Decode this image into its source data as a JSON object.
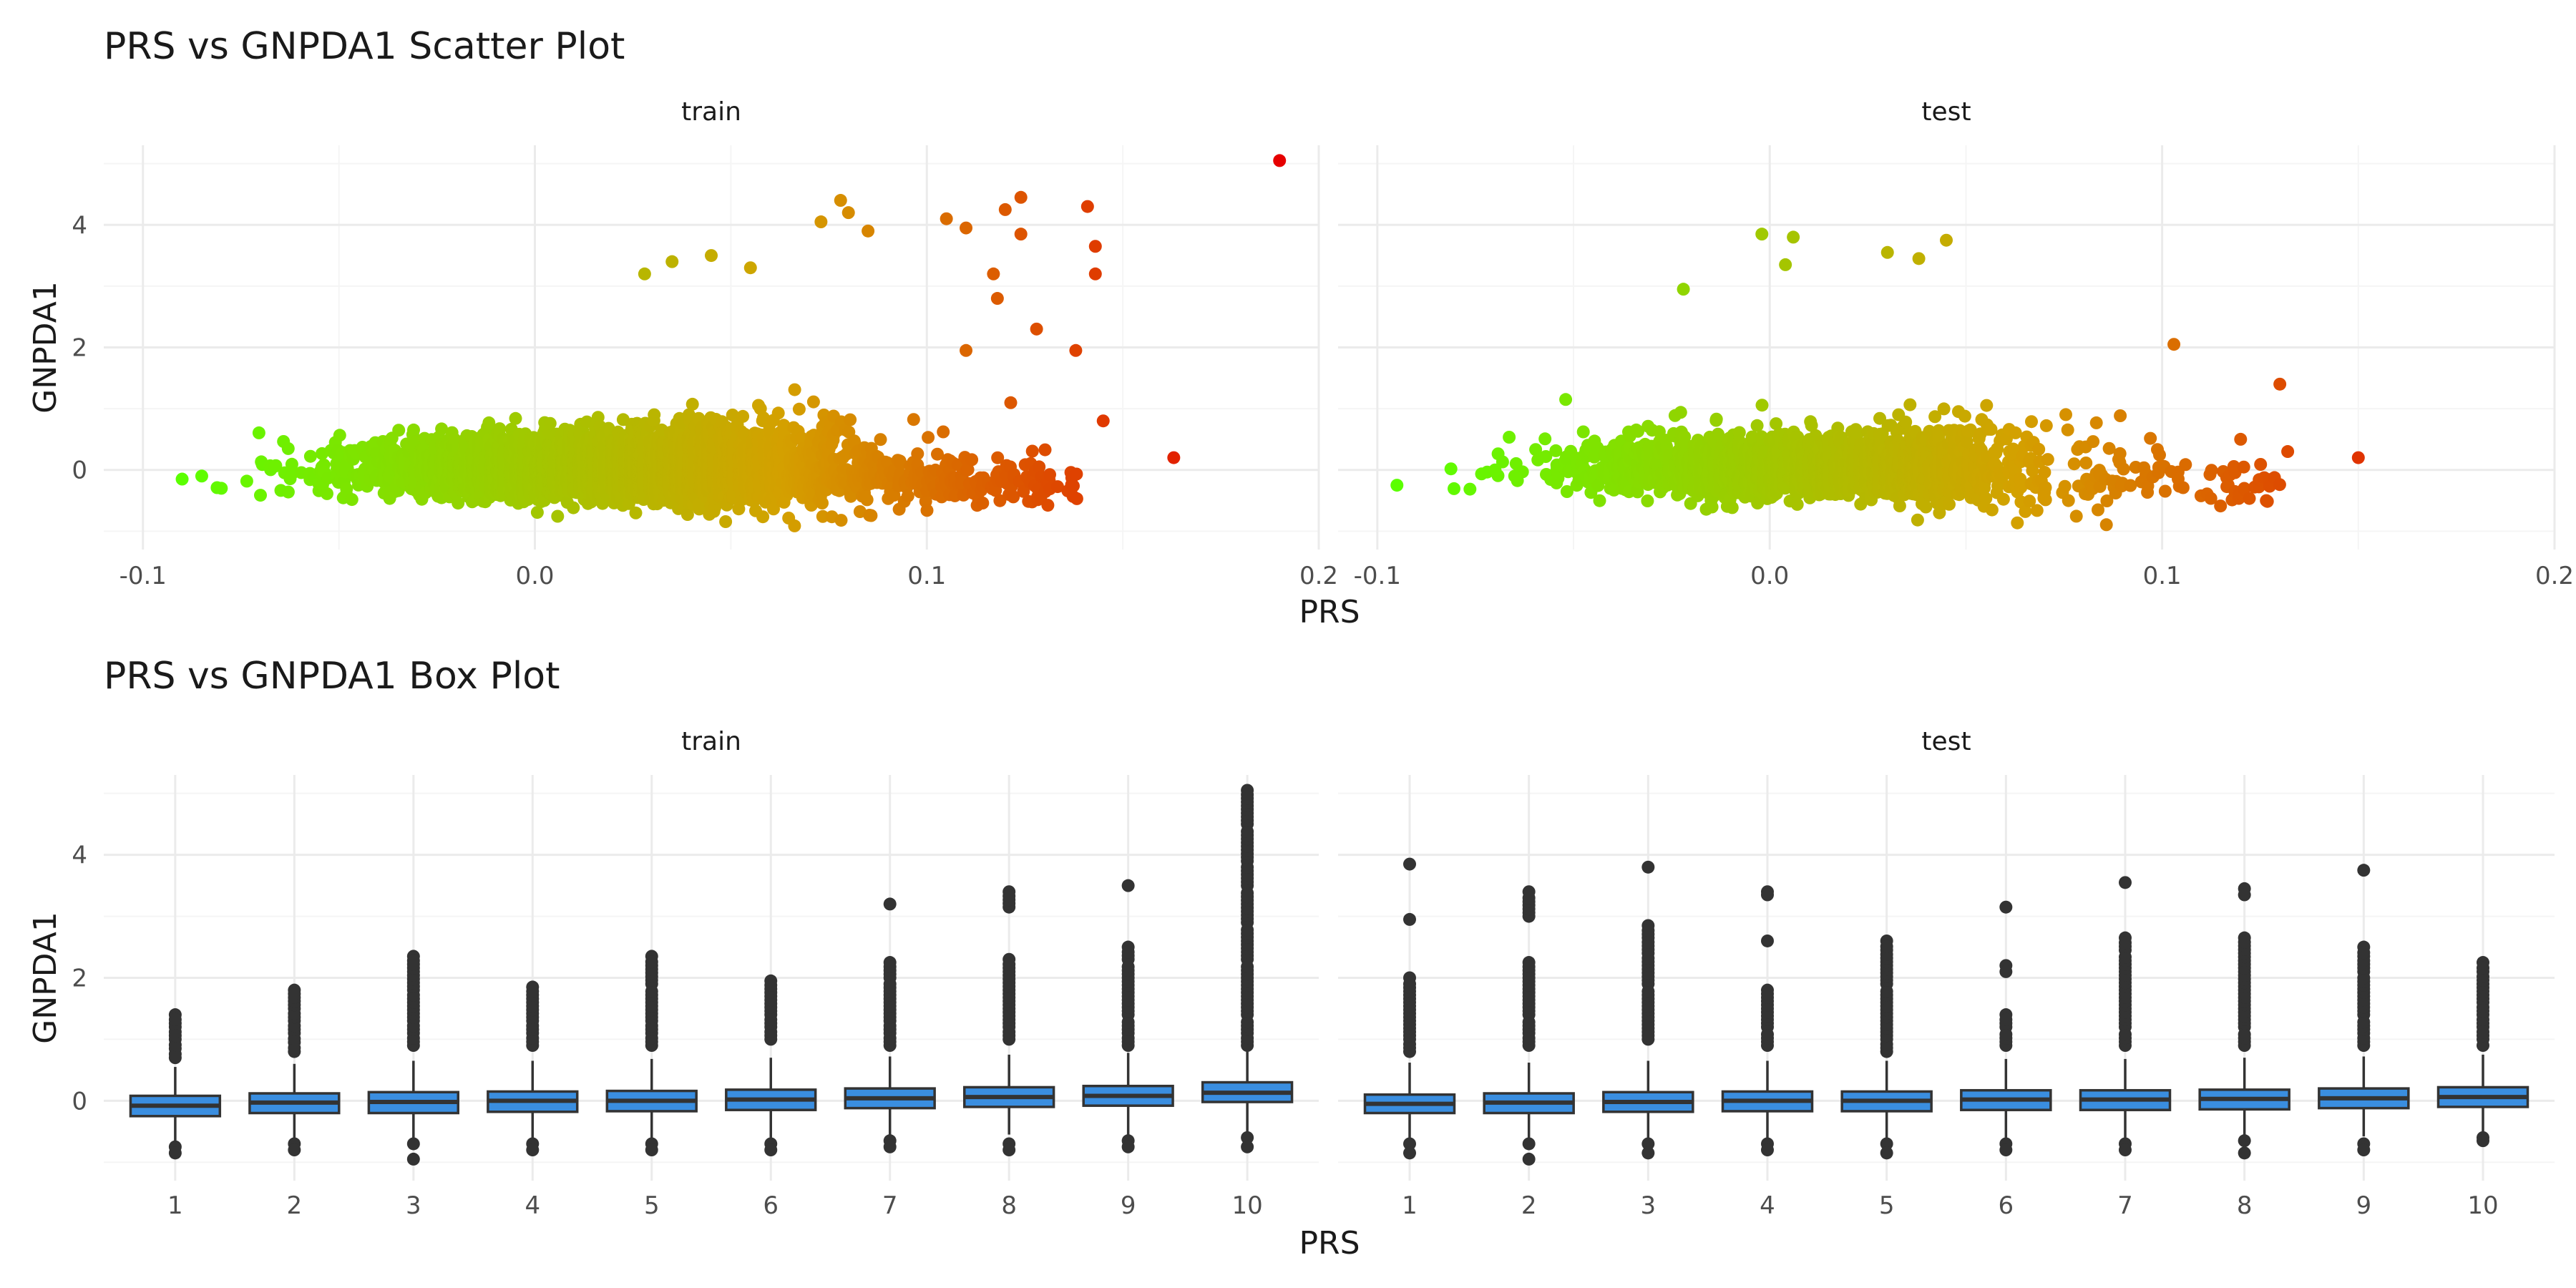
{
  "colors": {
    "grid_major": "#ebebeb",
    "grid_minor": "#f5f5f5",
    "text_dark": "#1a1a1a",
    "text_tick": "#4d4d4d",
    "box_fill": "#3a8ee0",
    "box_line": "#333333",
    "outlier": "#333333",
    "gradient_low": "#5bff00",
    "gradient_mid": "#d4a000",
    "gradient_high": "#e60000"
  },
  "chart_data": [
    {
      "type": "scatter",
      "title": "PRS vs GNPDA1 Scatter Plot",
      "xlabel": "PRS",
      "ylabel": "GNPDA1",
      "xlim": [
        -0.11,
        0.2
      ],
      "ylim": [
        -1.3,
        5.3
      ],
      "x_ticks": [
        -0.1,
        0.0,
        0.1,
        0.2
      ],
      "x_tick_labels": [
        "-0.1",
        "0.0",
        "0.1",
        "0.2"
      ],
      "y_ticks": [
        0,
        2,
        4
      ],
      "y_tick_labels": [
        "0",
        "2",
        "4"
      ],
      "grid": true,
      "color_encoding": "point color follows PRS, green (low) to orange/red (high)",
      "facets": [
        {
          "label": "train",
          "x_range": [
            -0.09,
            0.19
          ],
          "cloud_center": [
            0.02,
            0.0
          ],
          "highlight_points": [
            {
              "x": 0.19,
              "y": 5.05
            },
            {
              "x": 0.163,
              "y": 0.2
            },
            {
              "x": 0.141,
              "y": 4.3
            },
            {
              "x": 0.143,
              "y": 3.65
            },
            {
              "x": 0.143,
              "y": 3.2
            },
            {
              "x": 0.124,
              "y": 4.45
            },
            {
              "x": 0.124,
              "y": 3.85
            },
            {
              "x": 0.12,
              "y": 4.25
            },
            {
              "x": 0.118,
              "y": 2.8
            },
            {
              "x": 0.11,
              "y": 3.95
            },
            {
              "x": 0.117,
              "y": 3.2
            },
            {
              "x": 0.105,
              "y": 4.1
            },
            {
              "x": 0.08,
              "y": 4.2
            },
            {
              "x": 0.078,
              "y": 4.4
            },
            {
              "x": 0.085,
              "y": 3.9
            },
            {
              "x": 0.073,
              "y": 4.05
            },
            {
              "x": 0.055,
              "y": 3.3
            },
            {
              "x": 0.045,
              "y": 3.5
            },
            {
              "x": 0.035,
              "y": 3.4
            },
            {
              "x": 0.028,
              "y": 3.2
            },
            {
              "x": 0.128,
              "y": 2.3
            },
            {
              "x": 0.138,
              "y": 1.95
            },
            {
              "x": 0.11,
              "y": 1.95
            },
            {
              "x": 0.145,
              "y": 0.8
            },
            {
              "x": -0.085,
              "y": -0.1
            },
            {
              "x": -0.08,
              "y": -0.3
            },
            {
              "x": -0.09,
              "y": -0.15
            }
          ]
        },
        {
          "label": "test",
          "x_range": [
            -0.095,
            0.15
          ],
          "cloud_center": [
            0.01,
            0.0
          ],
          "highlight_points": [
            {
              "x": -0.095,
              "y": -0.25
            },
            {
              "x": 0.15,
              "y": 0.2
            },
            {
              "x": 0.13,
              "y": 1.4
            },
            {
              "x": 0.103,
              "y": 2.05
            },
            {
              "x": -0.002,
              "y": 3.85
            },
            {
              "x": 0.006,
              "y": 3.8
            },
            {
              "x": 0.03,
              "y": 3.55
            },
            {
              "x": 0.045,
              "y": 3.75
            },
            {
              "x": 0.038,
              "y": 3.45
            },
            {
              "x": 0.004,
              "y": 3.35
            },
            {
              "x": -0.022,
              "y": 2.95
            },
            {
              "x": 0.12,
              "y": 0.5
            },
            {
              "x": 0.132,
              "y": 0.3
            },
            {
              "x": -0.07,
              "y": 0.0
            },
            {
              "x": -0.065,
              "y": -0.1
            },
            {
              "x": -0.052,
              "y": 1.15
            }
          ]
        }
      ]
    },
    {
      "type": "box",
      "title": "PRS vs GNPDA1 Box Plot",
      "xlabel": "PRS",
      "ylabel": "GNPDA1",
      "ylim": [
        -1.3,
        5.3
      ],
      "y_ticks": [
        0,
        2,
        4
      ],
      "y_tick_labels": [
        "0",
        "2",
        "4"
      ],
      "categories": [
        "1",
        "2",
        "3",
        "4",
        "5",
        "6",
        "7",
        "8",
        "9",
        "10"
      ],
      "grid": true,
      "facets": [
        {
          "label": "train",
          "boxes": [
            {
              "q1": -0.25,
              "median": -0.08,
              "q3": 0.08,
              "lower": -0.65,
              "upper": 0.55,
              "outliers": [
                1.4,
                1.2,
                1.0,
                0.85,
                0.7,
                -0.75,
                -0.85
              ]
            },
            {
              "q1": -0.2,
              "median": -0.03,
              "q3": 0.12,
              "lower": -0.62,
              "upper": 0.6,
              "outliers": [
                1.8,
                1.5,
                1.3,
                1.1,
                0.95,
                0.8,
                -0.7,
                -0.8
              ]
            },
            {
              "q1": -0.2,
              "median": -0.02,
              "q3": 0.14,
              "lower": -0.65,
              "upper": 0.65,
              "outliers": [
                2.35,
                2.1,
                1.8,
                1.3,
                1.1,
                0.9,
                -0.7,
                -0.95
              ]
            },
            {
              "q1": -0.18,
              "median": 0.0,
              "q3": 0.15,
              "lower": -0.62,
              "upper": 0.65,
              "outliers": [
                1.85,
                1.6,
                1.3,
                1.1,
                0.9,
                -0.7,
                -0.8
              ]
            },
            {
              "q1": -0.17,
              "median": 0.0,
              "q3": 0.16,
              "lower": -0.62,
              "upper": 0.68,
              "outliers": [
                2.35,
                2.2,
                1.9,
                1.6,
                1.3,
                1.1,
                0.9,
                -0.7,
                -0.8
              ]
            },
            {
              "q1": -0.15,
              "median": 0.02,
              "q3": 0.18,
              "lower": -0.6,
              "upper": 0.7,
              "outliers": [
                1.95,
                1.7,
                1.4,
                1.2,
                1.0,
                -0.7,
                -0.8
              ]
            },
            {
              "q1": -0.12,
              "median": 0.04,
              "q3": 0.2,
              "lower": -0.58,
              "upper": 0.72,
              "outliers": [
                3.2,
                2.25,
                2.0,
                1.6,
                1.3,
                1.1,
                0.9,
                -0.65,
                -0.75
              ]
            },
            {
              "q1": -0.1,
              "median": 0.06,
              "q3": 0.22,
              "lower": -0.55,
              "upper": 0.75,
              "outliers": [
                3.4,
                3.15,
                2.3,
                2.1,
                1.8,
                1.5,
                1.2,
                1.0,
                -0.7,
                -0.8
              ]
            },
            {
              "q1": -0.08,
              "median": 0.08,
              "q3": 0.24,
              "lower": -0.55,
              "upper": 0.78,
              "outliers": [
                3.5,
                2.5,
                2.3,
                2.0,
                1.7,
                1.4,
                1.1,
                0.9,
                -0.65,
                -0.75
              ]
            },
            {
              "q1": -0.02,
              "median": 0.13,
              "q3": 0.3,
              "lower": -0.5,
              "upper": 0.8,
              "outliers": [
                5.05,
                4.5,
                4.2,
                3.9,
                3.5,
                3.2,
                2.9,
                2.6,
                2.3,
                2.0,
                1.7,
                1.4,
                1.1,
                0.9,
                -0.6,
                -0.75
              ]
            }
          ]
        },
        {
          "label": "test",
          "boxes": [
            {
              "q1": -0.2,
              "median": -0.05,
              "q3": 0.1,
              "lower": -0.62,
              "upper": 0.62,
              "outliers": [
                3.85,
                2.95,
                2.0,
                1.6,
                1.3,
                1.0,
                0.8,
                -0.7,
                -0.85
              ]
            },
            {
              "q1": -0.2,
              "median": -0.03,
              "q3": 0.12,
              "lower": -0.62,
              "upper": 0.62,
              "outliers": [
                3.4,
                3.0,
                2.25,
                2.0,
                1.7,
                1.4,
                1.1,
                0.9,
                -0.7,
                -0.95
              ]
            },
            {
              "q1": -0.18,
              "median": -0.02,
              "q3": 0.14,
              "lower": -0.62,
              "upper": 0.65,
              "outliers": [
                3.8,
                2.85,
                2.65,
                2.4,
                1.9,
                1.6,
                1.3,
                1.0,
                -0.7,
                -0.85
              ]
            },
            {
              "q1": -0.17,
              "median": 0.0,
              "q3": 0.15,
              "lower": -0.62,
              "upper": 0.65,
              "outliers": [
                3.4,
                3.35,
                2.6,
                1.8,
                1.5,
                1.2,
                0.9,
                -0.7,
                -0.8
              ]
            },
            {
              "q1": -0.17,
              "median": 0.0,
              "q3": 0.15,
              "lower": -0.62,
              "upper": 0.65,
              "outliers": [
                2.6,
                2.45,
                1.9,
                1.6,
                1.3,
                1.0,
                0.8,
                -0.7,
                -0.85
              ]
            },
            {
              "q1": -0.15,
              "median": 0.02,
              "q3": 0.17,
              "lower": -0.6,
              "upper": 0.68,
              "outliers": [
                3.15,
                2.2,
                2.1,
                1.4,
                1.2,
                0.9,
                -0.7,
                -0.8
              ]
            },
            {
              "q1": -0.15,
              "median": 0.02,
              "q3": 0.17,
              "lower": -0.6,
              "upper": 0.68,
              "outliers": [
                3.55,
                2.65,
                2.45,
                2.1,
                1.8,
                1.5,
                1.2,
                0.9,
                -0.7,
                -0.8
              ]
            },
            {
              "q1": -0.14,
              "median": 0.03,
              "q3": 0.18,
              "lower": -0.6,
              "upper": 0.7,
              "outliers": [
                3.45,
                3.35,
                2.65,
                2.1,
                1.8,
                1.5,
                1.2,
                0.9,
                -0.65,
                -0.85
              ]
            },
            {
              "q1": -0.12,
              "median": 0.04,
              "q3": 0.2,
              "lower": -0.58,
              "upper": 0.72,
              "outliers": [
                3.75,
                2.5,
                2.35,
                2.1,
                1.7,
                1.4,
                1.1,
                0.9,
                -0.7,
                -0.8
              ]
            },
            {
              "q1": -0.1,
              "median": 0.06,
              "q3": 0.22,
              "lower": -0.55,
              "upper": 0.75,
              "outliers": [
                2.25,
                2.1,
                1.6,
                1.4,
                1.2,
                1.0,
                0.9,
                -0.6,
                -0.65
              ]
            }
          ]
        }
      ]
    }
  ]
}
